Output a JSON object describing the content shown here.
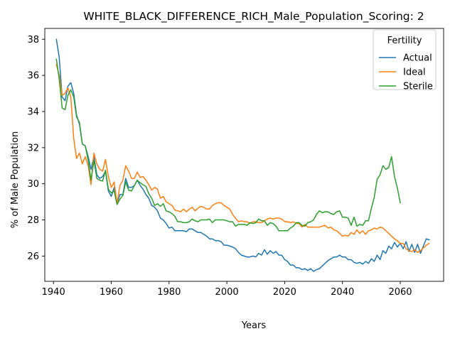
{
  "chart_data": {
    "type": "line",
    "title": "WHITE_BLACK_DIFFERENCE_RICH_Male_Population_Scoring: 2",
    "xlabel": "Years",
    "ylabel": "% of Male Population",
    "xlim": [
      1937,
      2075
    ],
    "ylim": [
      24.6,
      38.6
    ],
    "xticks": [
      1940,
      1960,
      1980,
      2000,
      2020,
      2040,
      2060
    ],
    "yticks": [
      26,
      28,
      30,
      32,
      34,
      36,
      38
    ],
    "grid": false,
    "legend": {
      "title": "Fertility",
      "placement": "top-right"
    },
    "series": [
      {
        "name": "Actual",
        "color": "#1f77b4",
        "x": [
          1941,
          1942,
          1943,
          1944,
          1945,
          1946,
          1947,
          1948,
          1949,
          1950,
          1951,
          1952,
          1953,
          1954,
          1955,
          1956,
          1957,
          1958,
          1959,
          1960,
          1961,
          1962,
          1963,
          1964,
          1965,
          1966,
          1967,
          1968,
          1969,
          1970,
          1971,
          1972,
          1973,
          1974,
          1975,
          1976,
          1977,
          1978,
          1979,
          1980,
          1981,
          1982,
          1983,
          1984,
          1985,
          1986,
          1987,
          1988,
          1989,
          1990,
          1991,
          1992,
          1993,
          1994,
          1995,
          1996,
          1997,
          1998,
          1999,
          2000,
          2001,
          2002,
          2003,
          2004,
          2005,
          2006,
          2007,
          2008,
          2009,
          2010,
          2011,
          2012,
          2013,
          2014,
          2015,
          2016,
          2017,
          2018,
          2019,
          2020,
          2021,
          2022,
          2023,
          2024,
          2025,
          2026,
          2027,
          2028,
          2029,
          2030,
          2031,
          2032,
          2033,
          2034,
          2035,
          2036,
          2037,
          2038,
          2039,
          2040,
          2041,
          2042,
          2043,
          2044,
          2045,
          2046,
          2047,
          2048,
          2049,
          2050,
          2051,
          2052,
          2053,
          2054,
          2055,
          2056,
          2057,
          2058,
          2059,
          2060,
          2061,
          2062,
          2063,
          2064,
          2065,
          2066,
          2067,
          2068,
          2069,
          2070
        ],
        "values": [
          38.0,
          37.0,
          34.8,
          34.6,
          35.4,
          35.6,
          35.0,
          33.8,
          33.3,
          32.2,
          32.1,
          31.5,
          30.8,
          31.5,
          30.5,
          30.3,
          30.4,
          30.7,
          29.6,
          29.3,
          29.8,
          28.9,
          29.4,
          29.4,
          30.3,
          29.8,
          29.8,
          29.9,
          30.2,
          29.9,
          29.7,
          29.4,
          29.2,
          28.8,
          28.7,
          28.5,
          28.1,
          28.0,
          27.8,
          27.55,
          27.6,
          27.4,
          27.4,
          27.4,
          27.4,
          27.35,
          27.5,
          27.5,
          27.4,
          27.3,
          27.3,
          27.2,
          27.1,
          26.95,
          26.95,
          26.85,
          26.85,
          26.8,
          26.6,
          26.6,
          26.55,
          26.5,
          26.4,
          26.2,
          26.05,
          26.0,
          25.95,
          25.95,
          26.0,
          25.95,
          26.15,
          26.05,
          26.35,
          26.1,
          26.3,
          26.15,
          26.25,
          26.05,
          26.05,
          25.8,
          25.7,
          25.5,
          25.5,
          25.35,
          25.35,
          25.25,
          25.3,
          25.2,
          25.3,
          25.15,
          25.25,
          25.3,
          25.45,
          25.6,
          25.75,
          25.85,
          25.95,
          25.95,
          26.05,
          25.95,
          25.95,
          25.8,
          25.8,
          25.65,
          25.6,
          25.65,
          25.55,
          25.7,
          25.6,
          25.85,
          25.7,
          26.05,
          25.8,
          26.3,
          26.15,
          26.55,
          26.4,
          26.75,
          26.5,
          26.7,
          26.4,
          26.8,
          26.25,
          26.65,
          26.2,
          26.65,
          26.15,
          26.55,
          26.95,
          26.9
        ]
      },
      {
        "name": "Ideal",
        "color": "#ff7f0e",
        "x": [
          1941,
          1942,
          1943,
          1944,
          1945,
          1946,
          1947,
          1948,
          1949,
          1950,
          1951,
          1952,
          1953,
          1954,
          1955,
          1956,
          1957,
          1958,
          1959,
          1960,
          1961,
          1962,
          1963,
          1964,
          1965,
          1966,
          1967,
          1968,
          1969,
          1970,
          1971,
          1972,
          1973,
          1974,
          1975,
          1976,
          1977,
          1978,
          1979,
          1980,
          1981,
          1982,
          1983,
          1984,
          1985,
          1986,
          1987,
          1988,
          1989,
          1990,
          1991,
          1992,
          1993,
          1994,
          1995,
          1996,
          1997,
          1998,
          1999,
          2000,
          2001,
          2002,
          2003,
          2004,
          2005,
          2006,
          2007,
          2008,
          2009,
          2010,
          2011,
          2012,
          2013,
          2014,
          2015,
          2016,
          2017,
          2018,
          2019,
          2020,
          2021,
          2022,
          2023,
          2024,
          2025,
          2026,
          2027,
          2028,
          2029,
          2030,
          2031,
          2032,
          2033,
          2034,
          2035,
          2036,
          2037,
          2038,
          2039,
          2040,
          2041,
          2042,
          2043,
          2044,
          2045,
          2046,
          2047,
          2048,
          2049,
          2050,
          2051,
          2052,
          2053,
          2054,
          2055,
          2056,
          2057,
          2058,
          2059,
          2060,
          2061,
          2062,
          2063,
          2064,
          2065,
          2066,
          2067,
          2068,
          2069,
          2070
        ],
        "values": [
          36.6,
          36.0,
          34.9,
          35.0,
          35.3,
          34.8,
          32.5,
          31.4,
          31.7,
          31.1,
          31.5,
          31.0,
          29.95,
          31.7,
          31.1,
          30.8,
          30.7,
          31.35,
          30.4,
          29.8,
          30.1,
          28.9,
          29.9,
          30.2,
          31.0,
          30.7,
          30.3,
          30.3,
          30.65,
          30.35,
          30.4,
          30.2,
          29.95,
          29.65,
          29.8,
          29.7,
          29.2,
          29.3,
          29.0,
          28.9,
          28.8,
          28.55,
          28.5,
          28.45,
          28.6,
          28.45,
          28.6,
          28.7,
          28.5,
          28.65,
          28.75,
          28.7,
          28.6,
          28.6,
          28.8,
          28.9,
          28.95,
          28.95,
          28.8,
          28.7,
          28.6,
          28.3,
          28.1,
          27.9,
          27.95,
          27.9,
          27.9,
          27.8,
          27.9,
          27.9,
          27.85,
          27.85,
          27.95,
          28.05,
          28.1,
          28.05,
          28.1,
          28.1,
          28.05,
          27.9,
          27.9,
          27.85,
          27.9,
          27.8,
          27.8,
          27.6,
          27.75,
          27.6,
          27.6,
          27.6,
          27.6,
          27.6,
          27.65,
          27.7,
          27.55,
          27.6,
          27.45,
          27.4,
          27.25,
          27.1,
          27.15,
          27.1,
          27.3,
          27.2,
          27.45,
          27.25,
          27.4,
          27.2,
          27.4,
          27.45,
          27.55,
          27.5,
          27.6,
          27.55,
          27.4,
          27.25,
          27.1,
          26.95,
          26.85,
          26.7,
          26.7,
          26.4,
          26.3,
          26.25,
          26.35,
          26.2,
          26.3,
          26.45,
          26.6,
          26.7
        ]
      },
      {
        "name": "Sterile",
        "color": "#2ca02c",
        "x": [
          1941,
          1942,
          1943,
          1944,
          1945,
          1946,
          1947,
          1948,
          1949,
          1950,
          1951,
          1952,
          1953,
          1954,
          1955,
          1956,
          1957,
          1958,
          1959,
          1960,
          1961,
          1962,
          1963,
          1964,
          1965,
          1966,
          1967,
          1968,
          1969,
          1970,
          1971,
          1972,
          1973,
          1974,
          1975,
          1976,
          1977,
          1978,
          1979,
          1980,
          1981,
          1982,
          1983,
          1984,
          1985,
          1986,
          1987,
          1988,
          1989,
          1990,
          1991,
          1992,
          1993,
          1994,
          1995,
          1996,
          1997,
          1998,
          1999,
          2000,
          2001,
          2002,
          2003,
          2004,
          2005,
          2006,
          2007,
          2008,
          2009,
          2010,
          2011,
          2012,
          2013,
          2014,
          2015,
          2016,
          2017,
          2018,
          2019,
          2020,
          2021,
          2022,
          2023,
          2024,
          2025,
          2026,
          2027,
          2028,
          2029,
          2030,
          2031,
          2032,
          2033,
          2034,
          2035,
          2036,
          2037,
          2038,
          2039,
          2040,
          2041,
          2042,
          2043,
          2044,
          2045,
          2046,
          2047,
          2048,
          2049,
          2050,
          2051,
          2052,
          2053,
          2054,
          2055,
          2056,
          2057,
          2058,
          2059,
          2060
        ],
        "values": [
          36.9,
          35.8,
          34.2,
          34.1,
          34.9,
          35.2,
          34.8,
          33.7,
          33.4,
          32.2,
          32.1,
          31.3,
          30.2,
          31.3,
          30.3,
          30.2,
          30.15,
          30.75,
          29.7,
          29.5,
          29.6,
          28.85,
          29.15,
          29.35,
          30.1,
          29.65,
          29.6,
          29.9,
          30.2,
          30.05,
          29.95,
          29.85,
          29.45,
          29.2,
          28.8,
          28.9,
          28.75,
          28.9,
          28.5,
          28.45,
          28.35,
          28.2,
          27.9,
          27.9,
          27.85,
          27.85,
          27.9,
          28.05,
          27.95,
          27.9,
          28.0,
          28.0,
          28.0,
          28.05,
          27.85,
          28.0,
          28.0,
          28.0,
          28.0,
          27.95,
          27.9,
          27.9,
          27.65,
          27.75,
          27.75,
          27.75,
          27.7,
          27.85,
          27.8,
          27.85,
          28.05,
          27.95,
          27.95,
          27.7,
          27.85,
          27.8,
          27.65,
          27.4,
          27.4,
          27.4,
          27.4,
          27.55,
          27.65,
          27.85,
          27.85,
          27.7,
          27.65,
          27.85,
          27.9,
          28.0,
          28.3,
          28.5,
          28.4,
          28.45,
          28.45,
          28.35,
          28.3,
          28.45,
          28.5,
          28.15,
          28.15,
          28.1,
          27.7,
          28.15,
          27.65,
          27.75,
          27.7,
          27.95,
          27.95,
          28.65,
          29.25,
          30.25,
          30.5,
          31.0,
          30.8,
          30.9,
          31.5,
          30.4,
          29.75,
          28.95
        ]
      }
    ]
  }
}
